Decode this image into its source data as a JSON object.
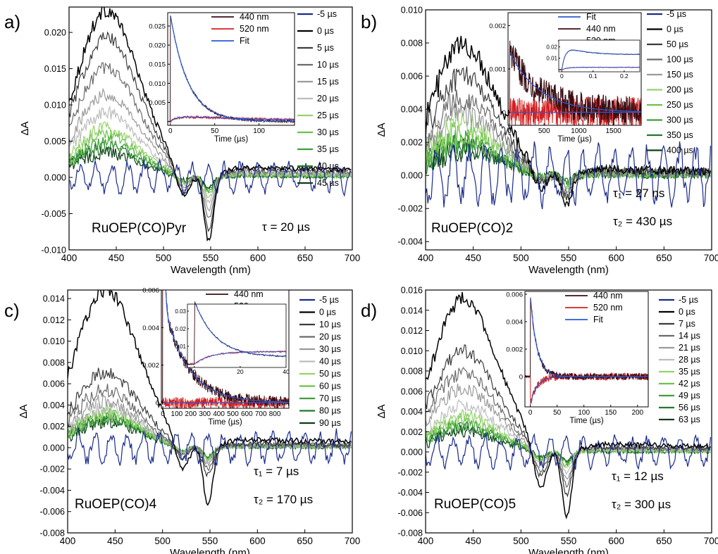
{
  "figure": {
    "panels": [
      {
        "tag": "a)",
        "sample": "RuOEP(CO)Pyr",
        "tau_lines": [
          "τ = 20 µs"
        ],
        "chart_data": {
          "type": "line",
          "xlabel": "Wavelength (nm)",
          "ylabel": "ΔA",
          "xlim": [
            400,
            700
          ],
          "ylim": [
            -0.01,
            0.0235
          ],
          "xticks": [
            400,
            450,
            500,
            550,
            600,
            650,
            700
          ],
          "yticks": [
            -0.01,
            -0.005,
            0.0,
            0.005,
            0.01,
            0.015,
            0.02
          ],
          "ytick_labels": [
            "-0.010",
            "-0.005",
            "0.000",
            "0.005",
            "0.010",
            "0.015",
            "0.020"
          ],
          "legend": [
            "-5 µs",
            "0 µs",
            "5 µs",
            "10 µs",
            "15 µs",
            "20 µs",
            "25 µs",
            "30 µs",
            "35 µs",
            "40 µs",
            "45 µs"
          ],
          "legend_colors": [
            "#1a2a8c",
            "#000000",
            "#3c3c3c",
            "#6a6a6a",
            "#9a9a9a",
            "#bdbdbd",
            "#96d26e",
            "#6cc24a",
            "#3f9e3a",
            "#1f7a2a",
            "#0d3d17"
          ],
          "peaks": [
            0.0,
            0.022,
            0.0185,
            0.0145,
            0.011,
            0.0085,
            0.0065,
            0.0055,
            0.0047,
            0.004,
            0.0032
          ],
          "noise": 0.0011,
          "dip1": -0.004,
          "dip2": -0.009,
          "tail": 0.0015
        },
        "inset": {
          "xlabel": "Time (µs)",
          "xlim": [
            -3,
            140
          ],
          "ylim": [
            -0.001,
            0.0285
          ],
          "xticks": [
            0,
            50,
            100
          ],
          "xtick_labels": [
            "0",
            "50",
            "100"
          ],
          "yticks": [
            0.005,
            0.01,
            0.015,
            0.02,
            0.025
          ],
          "ytick_labels": [
            "0.005",
            "0.010",
            "0.015",
            "0.020",
            "0.025"
          ],
          "legend": [
            "440 nm",
            "520 nm",
            "Fit"
          ],
          "legend_colors": [
            "#3a0f14",
            "#d42020",
            "#2a5ad6"
          ],
          "amp1": 0.028,
          "tau": 20,
          "amp2": 0.0015,
          "tau_rise": 8,
          "noise": 0.0003
        }
      },
      {
        "tag": "b)",
        "sample": "RuOEP(CO)2",
        "tau_lines": [
          "τ₁ = 27 ns",
          "τ₂ = 430 µs"
        ],
        "chart_data": {
          "type": "line",
          "xlabel": "Wavelength (nm)",
          "ylabel": "ΔA",
          "xlim": [
            400,
            700
          ],
          "ylim": [
            -0.0045,
            0.01
          ],
          "xticks": [
            400,
            450,
            500,
            550,
            600,
            650,
            700
          ],
          "yticks": [
            -0.004,
            -0.002,
            0.0,
            0.002,
            0.004,
            0.006,
            0.008,
            0.01
          ],
          "ytick_labels": [
            "-0.004",
            "-0.002",
            "0.000",
            "0.002",
            "0.004",
            "0.006",
            "0.008",
            "0.010"
          ],
          "legend": [
            "-5 µs",
            "0 µs",
            "50 µs",
            "100 µs",
            "150 µs",
            "200 µs",
            "250 µs",
            "300 µs",
            "350 µs",
            "400 µs"
          ],
          "legend_colors": [
            "#1a2a8c",
            "#000000",
            "#3c3c3c",
            "#6a6a6a",
            "#9a9a9a",
            "#96d26e",
            "#6cc24a",
            "#3f9e3a",
            "#1f7a2a",
            "#0d3d17"
          ],
          "peaks": [
            0.0,
            0.0075,
            0.0058,
            0.0045,
            0.0036,
            0.003,
            0.0025,
            0.002,
            0.0017,
            0.0015
          ],
          "noise": 0.0009,
          "dip1": -0.0012,
          "dip2": -0.0018,
          "tail": 0.0004
        },
        "inset": {
          "xlabel": "Time (µs)",
          "xlim": [
            -20,
            1900
          ],
          "ylim": [
            -0.0003,
            0.0023
          ],
          "xticks": [
            0,
            500,
            1000,
            1500
          ],
          "xtick_labels": [
            "0",
            "500",
            "1000",
            "1500"
          ],
          "yticks": [
            0.0,
            0.001,
            0.002
          ],
          "ytick_labels": [
            "0",
            "0.001",
            "0.002"
          ],
          "legend": [
            "Fit",
            "440 nm",
            "520 nm"
          ],
          "legend_colors": [
            "#2a5ad6",
            "#3a0f14",
            "#d42020"
          ],
          "amp1": 0.0014,
          "tau": 430,
          "amp2": 0.0,
          "tau_rise": 10,
          "noise": 0.00035,
          "sub": {
            "xlim": [
              -0.01,
              0.25
            ],
            "ylim": [
              -0.002,
              0.026
            ],
            "xticks": [
              0,
              0.1,
              0.2
            ],
            "xtick_labels": [
              "0",
              "0.1",
              "0.2"
            ],
            "yticks": [
              0.01,
              0.02
            ],
            "ytick_labels": [
              "0.01",
              "0.02"
            ]
          }
        }
      },
      {
        "tag": "c)",
        "sample": "RuOEP(CO)4",
        "tau_lines": [
          "τ₁ = 7 µs",
          "τ₂ = 170 µs"
        ],
        "chart_data": {
          "type": "line",
          "xlabel": "Wavelength (nm)",
          "ylabel": "ΔA",
          "xlim": [
            400,
            700
          ],
          "ylim": [
            -0.008,
            0.0148
          ],
          "xticks": [
            400,
            450,
            500,
            550,
            600,
            650,
            700
          ],
          "yticks": [
            -0.008,
            -0.006,
            -0.004,
            -0.002,
            0.0,
            0.002,
            0.004,
            0.006,
            0.008,
            0.01,
            0.012,
            0.014
          ],
          "ytick_labels": [
            "-0.008",
            "-0.006",
            "-0.004",
            "-0.002",
            "0.000",
            "0.002",
            "0.004",
            "0.006",
            "0.008",
            "0.010",
            "0.012",
            "0.014"
          ],
          "legend": [
            "-5 µs",
            "0 µs",
            "10 µs",
            "20 µs",
            "30 µs",
            "40 µs",
            "50 µs",
            "60 µs",
            "70 µs",
            "80 µs",
            "90 µs"
          ],
          "legend_colors": [
            "#1a2a8c",
            "#000000",
            "#3c3c3c",
            "#6a6a6a",
            "#9a9a9a",
            "#bdbdbd",
            "#96d26e",
            "#6cc24a",
            "#3f9e3a",
            "#1f7a2a",
            "#0d3d17"
          ],
          "peaks": [
            0.0,
            0.0142,
            0.0068,
            0.0052,
            0.0042,
            0.0036,
            0.0032,
            0.003,
            0.0028,
            0.0026,
            0.0024
          ],
          "noise": 0.0008,
          "dip1": -0.003,
          "dip2": -0.0055,
          "tail": 0.0008
        },
        "inset": {
          "xlabel": "Time (µs)",
          "xlim": [
            -10,
            900
          ],
          "ylim": [
            -0.0003,
            0.006
          ],
          "xticks": [
            0,
            100,
            200,
            300,
            400,
            500,
            600,
            700,
            800
          ],
          "xtick_labels": [
            "0",
            "100",
            "200",
            "300",
            "400",
            "500",
            "600",
            "700",
            "800"
          ],
          "yticks": [
            0.0,
            0.002,
            0.004,
            0.006
          ],
          "ytick_labels": [
            "0",
            "0.002",
            "0.004",
            "0.006"
          ],
          "legend": [
            "440 nm",
            "520 nm",
            "Fit"
          ],
          "legend_colors": [
            "#3a0f14",
            "#d42020",
            "#2a5ad6"
          ],
          "amp1": 0.0055,
          "tau": 170,
          "amp2": 0.0,
          "tau_rise": 7,
          "noise": 0.0003,
          "fast": 7,
          "sub": {
            "xlim": [
              -3,
              40
            ],
            "ylim": [
              -0.002,
              0.034
            ],
            "xticks": [
              0,
              20,
              40
            ],
            "xtick_labels": [
              "0",
              "20",
              "40"
            ],
            "yticks": [
              0.0,
              0.01,
              0.02,
              0.03
            ],
            "ytick_labels": [
              "0",
              "0.01",
              "0.02",
              "0.03"
            ]
          }
        }
      },
      {
        "tag": "d)",
        "sample": "RuOEP(CO)5",
        "tau_lines": [
          "τ₁ = 12 µs",
          "τ₂ = 300 µs"
        ],
        "chart_data": {
          "type": "line",
          "xlabel": "Wavelength (nm)",
          "ylabel": "ΔA",
          "xlim": [
            400,
            700
          ],
          "ylim": [
            -0.008,
            0.016
          ],
          "xticks": [
            400,
            450,
            500,
            550,
            600,
            650,
            700
          ],
          "yticks": [
            -0.008,
            -0.006,
            -0.004,
            -0.002,
            0.0,
            0.002,
            0.004,
            0.006,
            0.008,
            0.01,
            0.012,
            0.014,
            0.016
          ],
          "ytick_labels": [
            "-0.008",
            "-0.006",
            "-0.004",
            "-0.002",
            "0.000",
            "0.002",
            "0.004",
            "0.006",
            "0.008",
            "0.010",
            "0.012",
            "0.014",
            "0.016"
          ],
          "legend": [
            "-5 µs",
            "0 µs",
            "7 µs",
            "14 µs",
            "21 µs",
            "28 µs",
            "35 µs",
            "42 µs",
            "49 µs",
            "56 µs",
            "63 µs"
          ],
          "legend_colors": [
            "#1a2a8c",
            "#000000",
            "#3c3c3c",
            "#6a6a6a",
            "#9a9a9a",
            "#bdbdbd",
            "#96d26e",
            "#6cc24a",
            "#3f9e3a",
            "#1f7a2a",
            "#0d3d17"
          ],
          "peaks": [
            0.0,
            0.0145,
            0.0095,
            0.0075,
            0.006,
            0.0045,
            0.0035,
            0.003,
            0.0026,
            0.0023,
            0.002
          ],
          "noise": 0.0008,
          "dip1": -0.0045,
          "dip2": -0.0065,
          "tail": 0.0008
        },
        "inset": {
          "xlabel": "Time (µs)",
          "xlim": [
            -10,
            220
          ],
          "ylim": [
            -0.0022,
            0.0062
          ],
          "xticks": [
            0,
            50,
            100,
            150,
            200
          ],
          "xtick_labels": [
            "0",
            "50",
            "100",
            "150",
            "200"
          ],
          "yticks": [
            0.0,
            0.002,
            0.004,
            0.006
          ],
          "ytick_labels": [
            "0",
            "0.002",
            "0.004",
            "0.006"
          ],
          "legend": [
            "440 nm",
            "520 nm",
            "Fit"
          ],
          "legend_colors": [
            "#3a0f14",
            "#d42020",
            "#2a5ad6"
          ],
          "amp1": 0.006,
          "tau": 12,
          "amp2": -0.002,
          "tau_rise": 12,
          "noise": 0.00025,
          "neg": true
        }
      }
    ]
  }
}
